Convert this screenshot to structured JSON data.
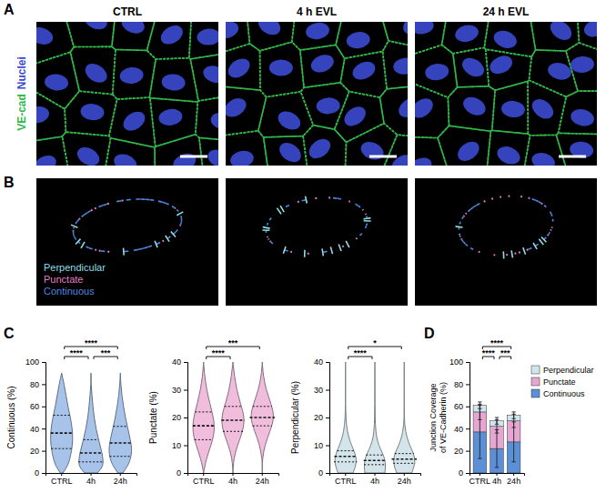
{
  "figure": {
    "panel_labels": [
      "A",
      "B",
      "C",
      "D"
    ],
    "image_titles": [
      "CTRL",
      "4 h EVL",
      "24 h EVL"
    ],
    "stain_labels": [
      {
        "label": "VE-cad",
        "color": "#2fb84a"
      },
      {
        "label": "Nuclei",
        "color": "#3b4bd0"
      }
    ],
    "trace_legend": [
      {
        "label": "Perpendicular",
        "color": "#8fdde6"
      },
      {
        "label": "Punctate",
        "color": "#e07fc4"
      },
      {
        "label": "Continuous",
        "color": "#4f86e0"
      }
    ]
  },
  "chart_data": [
    {
      "type": "violin",
      "ylabel": "Continuous (%)",
      "categories": [
        "CTRL",
        "4h",
        "24h"
      ],
      "color": "#a7c3ea",
      "ylim": [
        0,
        100
      ],
      "yticks": [
        0,
        20,
        40,
        60,
        80,
        100
      ],
      "density_y": [
        0,
        5,
        10,
        20,
        30,
        40,
        50,
        60,
        70,
        80,
        90
      ],
      "density": [
        [
          0.1,
          0.4,
          0.6,
          0.8,
          0.9,
          0.85,
          0.7,
          0.5,
          0.35,
          0.2,
          0
        ],
        [
          0.5,
          0.9,
          1.0,
          0.85,
          0.6,
          0.4,
          0.25,
          0.15,
          0.08,
          0,
          0
        ],
        [
          0.2,
          0.5,
          0.75,
          0.95,
          0.8,
          0.6,
          0.4,
          0.25,
          0.12,
          0.04,
          0
        ]
      ],
      "median": [
        36,
        18,
        27
      ],
      "q1": [
        22,
        10,
        15
      ],
      "q3": [
        52,
        30,
        42
      ],
      "annotations": [
        {
          "pair": [
            0,
            1
          ],
          "label": "****"
        },
        {
          "pair": [
            1,
            2
          ],
          "label": "***"
        },
        {
          "pair": [
            0,
            2
          ],
          "label": "****"
        }
      ]
    },
    {
      "type": "violin",
      "ylabel": "Punctate (%)",
      "categories": [
        "CTRL",
        "4h",
        "24h"
      ],
      "color": "#f0bddd",
      "ylim": [
        0,
        40
      ],
      "yticks": [
        0,
        10,
        20,
        30,
        40
      ],
      "density_y": [
        0,
        5,
        10,
        15,
        20,
        25,
        30,
        35,
        40
      ],
      "density": [
        [
          0,
          0.2,
          0.6,
          0.9,
          0.8,
          0.5,
          0.25,
          0.08,
          0
        ],
        [
          0,
          0.05,
          0.35,
          0.8,
          0.95,
          0.6,
          0.3,
          0.12,
          0
        ],
        [
          0,
          0,
          0.2,
          0.6,
          1.0,
          0.7,
          0.3,
          0.08,
          0
        ]
      ],
      "median": [
        17,
        19,
        20
      ],
      "q1": [
        12,
        15,
        17
      ],
      "q3": [
        22,
        24,
        24
      ],
      "annotations": [
        {
          "pair": [
            0,
            1
          ],
          "label": "****"
        },
        {
          "pair": [
            0,
            2
          ],
          "label": "***"
        }
      ]
    },
    {
      "type": "violin",
      "ylabel": "Perpendicular (%)",
      "categories": [
        "CTRL",
        "4h",
        "24h"
      ],
      "color": "#d3e4ea",
      "ylim": [
        0,
        40
      ],
      "yticks": [
        0,
        10,
        20,
        30,
        40
      ],
      "density_y": [
        0,
        5,
        10,
        15,
        20,
        25,
        30,
        35,
        40
      ],
      "density": [
        [
          0.6,
          1.0,
          0.45,
          0.12,
          0.03,
          0,
          0,
          0,
          0
        ],
        [
          0.8,
          0.9,
          0.25,
          0.06,
          0.02,
          0.01,
          0.01,
          0,
          0
        ],
        [
          0.6,
          1.0,
          0.4,
          0.08,
          0,
          0,
          0,
          0,
          0
        ]
      ],
      "median": [
        6,
        4.5,
        5
      ],
      "q1": [
        4,
        3,
        3.5
      ],
      "q3": [
        8,
        6.5,
        7
      ],
      "annotations": [
        {
          "pair": [
            0,
            1
          ],
          "label": "****"
        },
        {
          "pair": [
            0,
            2
          ],
          "label": "*"
        }
      ]
    },
    {
      "type": "bar",
      "stacked": true,
      "legend": "right",
      "ylabel": "Junction Coverage of VE-Cadherin (%)",
      "categories": [
        "CTRL",
        "4h",
        "24h"
      ],
      "ylim": [
        0,
        100
      ],
      "yticks": [
        0,
        20,
        40,
        60,
        80,
        100
      ],
      "series": [
        {
          "name": "Continuous",
          "color": "#5b8fd6",
          "values": [
            37,
            22,
            28
          ],
          "errors": [
            24,
            17,
            18
          ]
        },
        {
          "name": "Punctate",
          "color": "#e6a6d2",
          "values": [
            18,
            20,
            19
          ],
          "errors": [
            7,
            6,
            6
          ]
        },
        {
          "name": "Perpendicular",
          "color": "#cfe6ee",
          "values": [
            6,
            5,
            5
          ],
          "errors": [
            3,
            3,
            3
          ]
        }
      ],
      "annotations": [
        {
          "pair": [
            0,
            1
          ],
          "label": "****"
        },
        {
          "pair": [
            1,
            2
          ],
          "label": "***"
        },
        {
          "pair": [
            0,
            2
          ],
          "label": "****"
        }
      ]
    }
  ]
}
